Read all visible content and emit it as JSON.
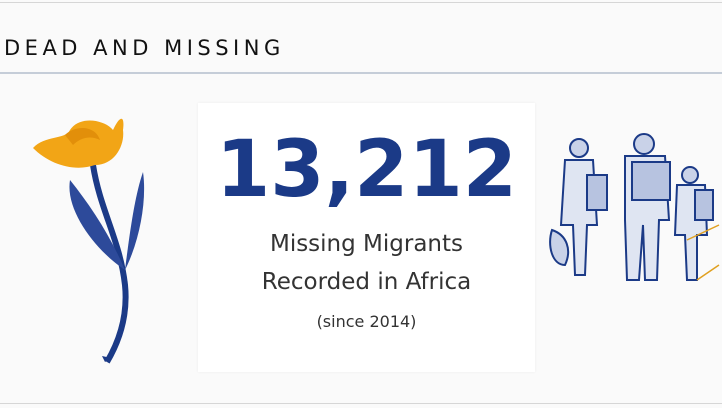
{
  "header": {
    "title": "DEAD AND MISSING"
  },
  "stat": {
    "value": "13,212",
    "label_lines": [
      "Missing Migrants",
      "Recorded in Africa"
    ],
    "note": "(since 2014)"
  }
}
